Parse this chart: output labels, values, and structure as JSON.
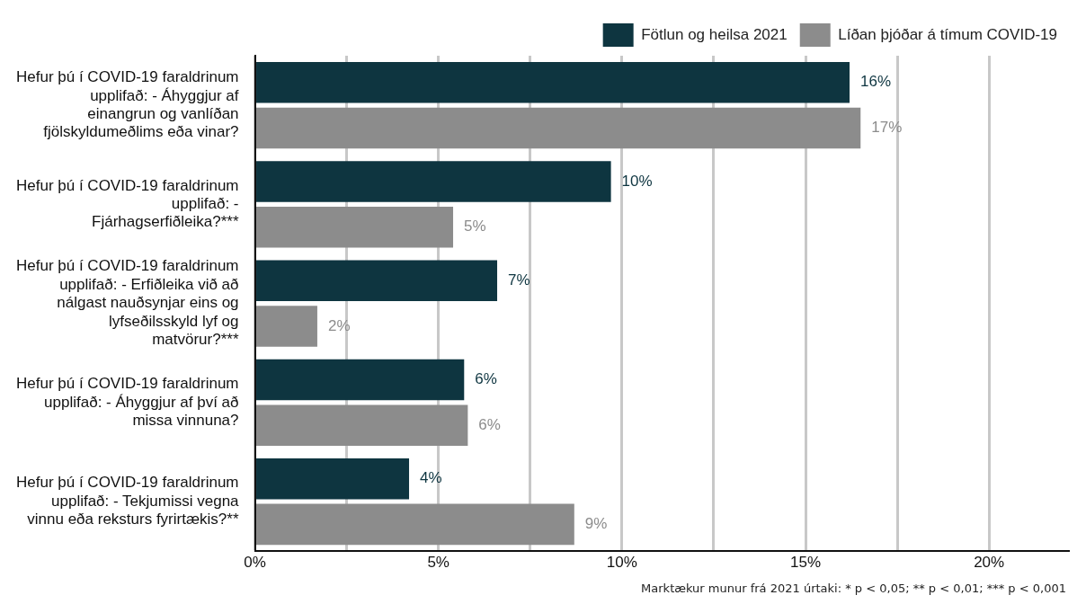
{
  "chart_data": {
    "type": "bar",
    "orientation": "horizontal",
    "categories": [
      "Hefur þú í COVID-19 faraldrinum upplifað: - Áhyggjur af einangrun og vanlíðan fjölskyldumeðlims eða vinar?",
      "Hefur þú í COVID-19 faraldrinum upplifað: - Fjárhagserfiðleika?***",
      "Hefur þú í COVID-19 faraldrinum upplifað: - Erfiðleika við að nálgast nauðsynjar eins og lyfseðilsskyld lyf og matvörur?***",
      "Hefur þú í COVID-19 faraldrinum upplifað: - Áhyggjur af því að missa vinnuna?",
      "Hefur þú í COVID-19 faraldrinum upplifað: - Tekjumissi vegna vinnu eða reksturs fyrirtækis?**"
    ],
    "series": [
      {
        "name": "Fötlun og heilsa 2021",
        "color": "#0e3540",
        "values": [
          16.2,
          9.7,
          6.6,
          5.7,
          4.2
        ],
        "value_labels": [
          "16%",
          "10%",
          "7%",
          "6%",
          "4%"
        ]
      },
      {
        "name": "Líðan þjóðar á tímum COVID-19",
        "color": "#8c8c8c",
        "values": [
          16.5,
          5.4,
          1.7,
          5.8,
          8.7
        ],
        "value_labels": [
          "17%",
          "5%",
          "2%",
          "6%",
          "9%"
        ]
      }
    ],
    "xlim": [
      0,
      22.2
    ],
    "xticks": [
      {
        "value": 0,
        "label": "0%"
      },
      {
        "value": 2.5,
        "label": null
      },
      {
        "value": 5,
        "label": "5%"
      },
      {
        "value": 7.5,
        "label": null
      },
      {
        "value": 10,
        "label": "10%"
      },
      {
        "value": 12.5,
        "label": null
      },
      {
        "value": 15,
        "label": "15%"
      },
      {
        "value": 17.5,
        "label": null
      },
      {
        "value": 20,
        "label": "20%"
      }
    ],
    "grid": "x",
    "legend": "top",
    "annotations": [
      "Marktækur munur frá 2021 úrtaki: * p < 0,05; ** p < 0,01; *** p < 0,001"
    ]
  }
}
